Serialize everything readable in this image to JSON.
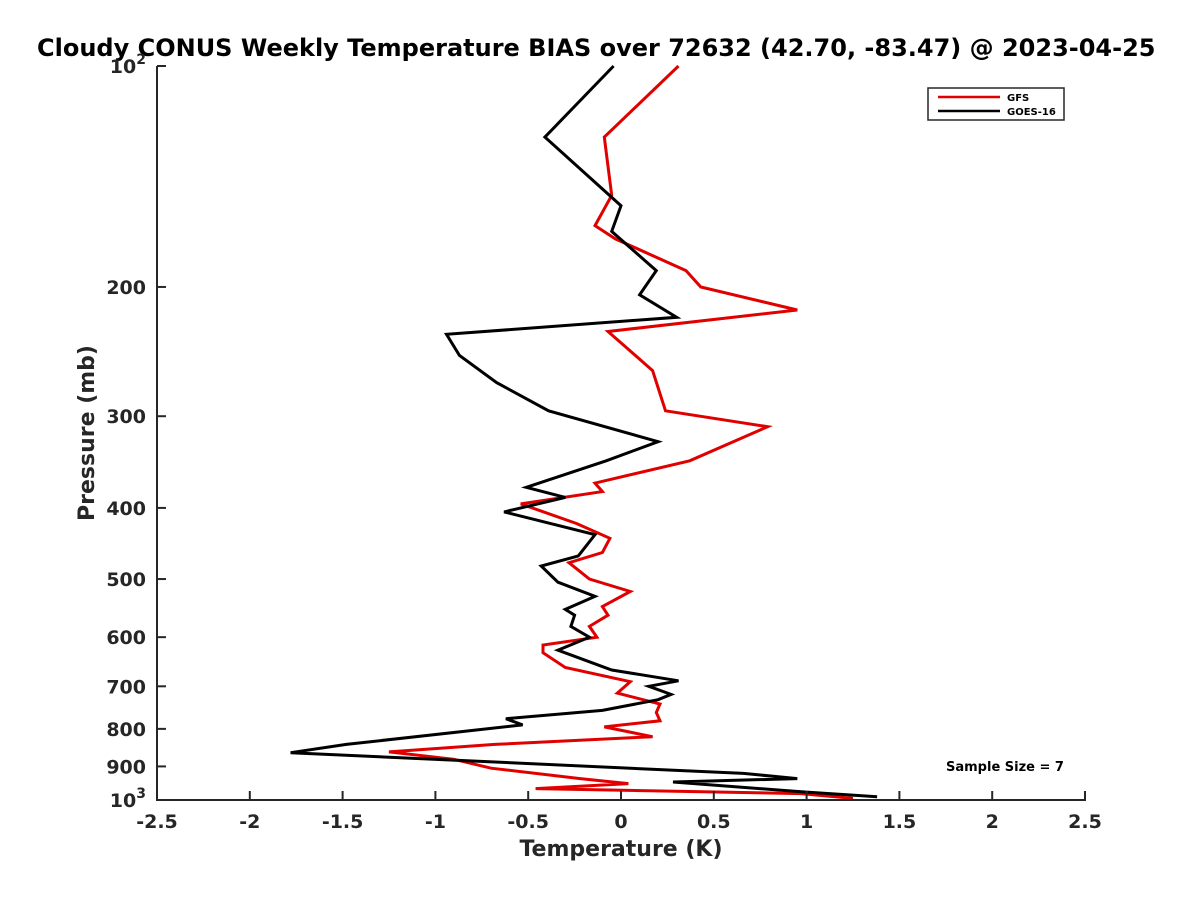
{
  "chart_data": {
    "type": "line",
    "title": "Cloudy CONUS Weekly Temperature BIAS over 72632 (42.70, -83.47) @ 2023-04-25",
    "xlabel": "Temperature (K)",
    "ylabel": "Pressure (mb)",
    "xlim": [
      -2.5,
      2.5
    ],
    "ylim": [
      100,
      1000
    ],
    "yscale": "log",
    "y_reversed": true,
    "x_ticks": [
      "-2.5",
      "-2",
      "-1.5",
      "-1",
      "-0.5",
      "0",
      "0.5",
      "1",
      "1.5",
      "2",
      "2.5"
    ],
    "y_ticks": [
      {
        "value": 100,
        "base": "10",
        "exp": "2"
      },
      {
        "value": 200,
        "label": "200"
      },
      {
        "value": 300,
        "label": "300"
      },
      {
        "value": 400,
        "label": "400"
      },
      {
        "value": 500,
        "label": "500"
      },
      {
        "value": 600,
        "label": "600"
      },
      {
        "value": 700,
        "label": "700"
      },
      {
        "value": 800,
        "label": "800"
      },
      {
        "value": 900,
        "label": "900"
      },
      {
        "value": 1000,
        "base": "10",
        "exp": "3"
      }
    ],
    "grid": false,
    "legend_position": "top-right",
    "annotation": "Sample Size = 7",
    "series": [
      {
        "name": "GFS",
        "color": "#e00000",
        "points": [
          [
            0.31,
            100
          ],
          [
            -0.09,
            125
          ],
          [
            -0.05,
            150
          ],
          [
            -0.14,
            165
          ],
          [
            -0.03,
            172
          ],
          [
            0.35,
            190
          ],
          [
            0.43,
            200
          ],
          [
            0.95,
            215
          ],
          [
            -0.07,
            230
          ],
          [
            0.17,
            260
          ],
          [
            0.24,
            295
          ],
          [
            0.79,
            310
          ],
          [
            0.37,
            345
          ],
          [
            -0.14,
            370
          ],
          [
            -0.1,
            380
          ],
          [
            -0.54,
            395
          ],
          [
            -0.24,
            420
          ],
          [
            -0.06,
            440
          ],
          [
            -0.1,
            460
          ],
          [
            -0.28,
            475
          ],
          [
            -0.17,
            500
          ],
          [
            0.05,
            520
          ],
          [
            -0.1,
            545
          ],
          [
            -0.07,
            560
          ],
          [
            -0.17,
            580
          ],
          [
            -0.13,
            600
          ],
          [
            -0.42,
            615
          ],
          [
            -0.42,
            630
          ],
          [
            -0.3,
            660
          ],
          [
            0.05,
            690
          ],
          [
            -0.02,
            715
          ],
          [
            0.21,
            740
          ],
          [
            0.19,
            760
          ],
          [
            0.21,
            780
          ],
          [
            -0.09,
            795
          ],
          [
            0.17,
            820
          ],
          [
            -0.68,
            840
          ],
          [
            -1.25,
            860
          ],
          [
            -0.9,
            880
          ],
          [
            -0.7,
            905
          ],
          [
            -0.22,
            935
          ],
          [
            0.04,
            950
          ],
          [
            -0.46,
            965
          ],
          [
            0.97,
            980
          ],
          [
            1.25,
            995
          ]
        ]
      },
      {
        "name": "GOES-16",
        "color": "#000000",
        "points": [
          [
            -0.04,
            100
          ],
          [
            -0.41,
            125
          ],
          [
            0.0,
            155
          ],
          [
            -0.05,
            168
          ],
          [
            0.19,
            190
          ],
          [
            0.1,
            205
          ],
          [
            0.3,
            220
          ],
          [
            -0.94,
            232
          ],
          [
            -0.87,
            248
          ],
          [
            -0.67,
            270
          ],
          [
            -0.39,
            295
          ],
          [
            0.2,
            325
          ],
          [
            -0.08,
            345
          ],
          [
            -0.51,
            375
          ],
          [
            -0.3,
            387
          ],
          [
            -0.63,
            405
          ],
          [
            -0.14,
            435
          ],
          [
            -0.23,
            465
          ],
          [
            -0.43,
            480
          ],
          [
            -0.34,
            505
          ],
          [
            -0.14,
            528
          ],
          [
            -0.3,
            550
          ],
          [
            -0.25,
            560
          ],
          [
            -0.27,
            580
          ],
          [
            -0.17,
            600
          ],
          [
            -0.34,
            625
          ],
          [
            -0.23,
            640
          ],
          [
            -0.05,
            665
          ],
          [
            0.31,
            688
          ],
          [
            0.15,
            700
          ],
          [
            0.27,
            718
          ],
          [
            0.2,
            730
          ],
          [
            -0.1,
            755
          ],
          [
            -0.62,
            775
          ],
          [
            -0.53,
            790
          ],
          [
            -1.48,
            840
          ],
          [
            -1.78,
            862
          ],
          [
            0.66,
            920
          ],
          [
            0.95,
            935
          ],
          [
            0.28,
            945
          ],
          [
            0.98,
            975
          ],
          [
            1.38,
            990
          ]
        ]
      }
    ]
  }
}
